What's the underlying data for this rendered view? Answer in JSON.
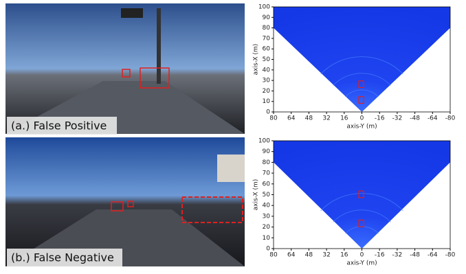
{
  "panels": [
    {
      "label": "(a.) False Positive"
    },
    {
      "label": "(b.) False Negative"
    }
  ],
  "radar_plots": [
    {
      "xlabel": "axis-Y (m)",
      "ylabel": "axis-X (m)",
      "xlim": [
        80,
        -80
      ],
      "ylim": [
        0,
        100
      ],
      "xticks": [
        80,
        64,
        48,
        32,
        16,
        0,
        -16,
        -32,
        -48,
        -64,
        -80
      ],
      "yticks": [
        0,
        10,
        20,
        30,
        40,
        50,
        60,
        70,
        80,
        90,
        100
      ]
    },
    {
      "xlabel": "axis-Y (m)",
      "ylabel": "axis-X (m)",
      "xlim": [
        80,
        -80
      ],
      "ylim": [
        0,
        100
      ],
      "xticks": [
        80,
        64,
        48,
        32,
        16,
        0,
        -16,
        -32,
        -48,
        -64,
        -80
      ],
      "yticks": [
        0,
        10,
        20,
        30,
        40,
        50,
        60,
        70,
        80,
        90,
        100
      ]
    }
  ]
}
